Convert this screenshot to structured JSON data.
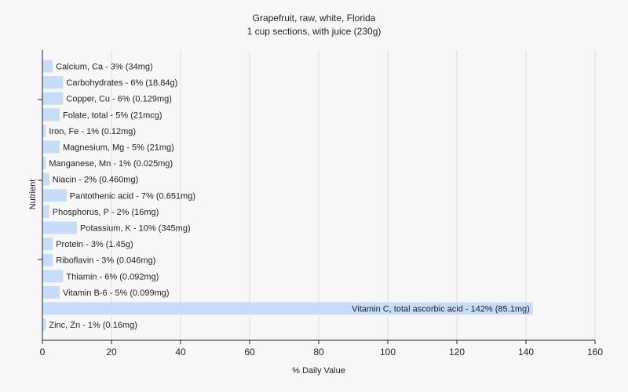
{
  "chart_data": {
    "type": "bar",
    "orientation": "horizontal",
    "title": "Grapefruit, raw, white, Florida",
    "subtitle": "1 cup sections, with juice (230g)",
    "xlabel": "% Daily Value",
    "ylabel": "Nutrient",
    "xlim": [
      0,
      160
    ],
    "xticks": [
      0,
      20,
      40,
      60,
      80,
      100,
      120,
      140,
      160
    ],
    "grid": true,
    "bar_color": "#c6dcf7",
    "categories": [
      "Calcium, Ca",
      "Carbohydrates",
      "Copper, Cu",
      "Folate, total",
      "Iron, Fe",
      "Magnesium, Mg",
      "Manganese, Mn",
      "Niacin",
      "Pantothenic acid",
      "Phosphorus, P",
      "Potassium, K",
      "Protein",
      "Riboflavin",
      "Thiamin",
      "Vitamin B-6",
      "Vitamin C, total ascorbic acid",
      "Zinc, Zn"
    ],
    "values": [
      3,
      6,
      6,
      5,
      1,
      5,
      1,
      2,
      7,
      2,
      10,
      3,
      3,
      6,
      5,
      142,
      1
    ],
    "labels": [
      "Calcium, Ca - 3% (34mg)",
      "Carbohydrates - 6% (18.84g)",
      "Copper, Cu - 6% (0.129mg)",
      "Folate, total - 5% (21mcg)",
      "Iron, Fe - 1% (0.12mg)",
      "Magnesium, Mg - 5% (21mg)",
      "Manganese, Mn - 1% (0.025mg)",
      "Niacin - 2% (0.460mg)",
      "Pantothenic acid - 7% (0.651mg)",
      "Phosphorus, P - 2% (16mg)",
      "Potassium, K - 10% (345mg)",
      "Protein - 3% (1.45g)",
      "Riboflavin - 3% (0.046mg)",
      "Thiamin - 6% (0.092mg)",
      "Vitamin B-6 - 5% (0.099mg)",
      "Vitamin C, total ascorbic acid - 142% (85.1mg)",
      "Zinc, Zn - 1% (0.16mg)"
    ]
  }
}
